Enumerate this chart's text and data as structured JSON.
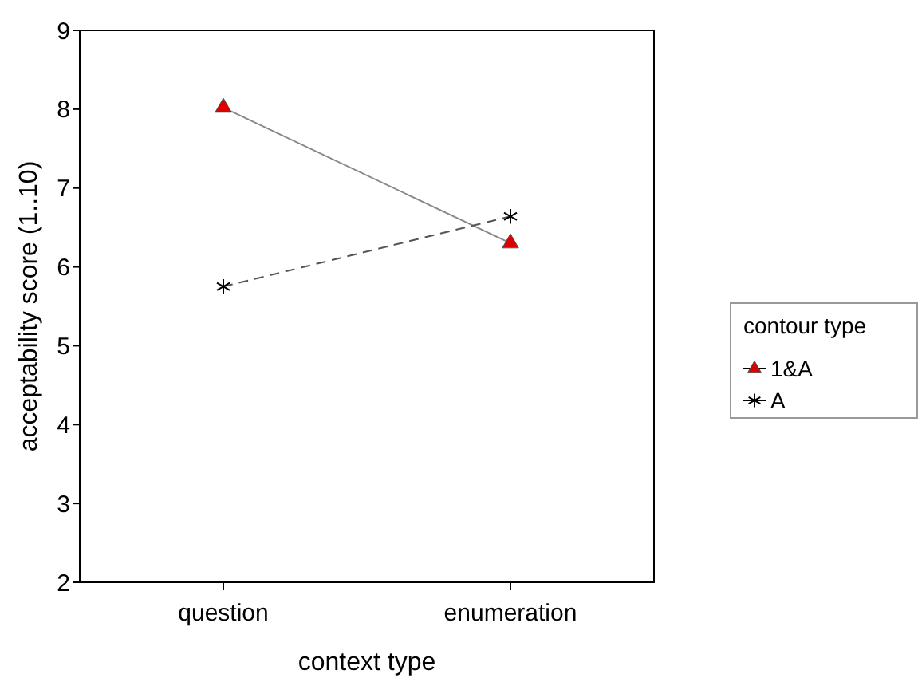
{
  "chart_data": {
    "type": "line",
    "categories": [
      "question",
      "enumeration"
    ],
    "xlabel": "context type",
    "ylabel": "acceptability score (1..10)",
    "ylim": [
      2,
      9
    ],
    "yticks": [
      2,
      3,
      4,
      5,
      6,
      7,
      8,
      9
    ],
    "legend": "right",
    "legend_title": "contour type",
    "grid": false,
    "series": [
      {
        "name": "1&A",
        "color": "#dd0000",
        "values": [
          8.02,
          6.3
        ],
        "marker": "triangle",
        "line_style": "solid"
      },
      {
        "name": "A",
        "color": "#000000",
        "values": [
          5.75,
          6.64
        ],
        "marker": "cross",
        "line_style": "dashed"
      }
    ]
  }
}
